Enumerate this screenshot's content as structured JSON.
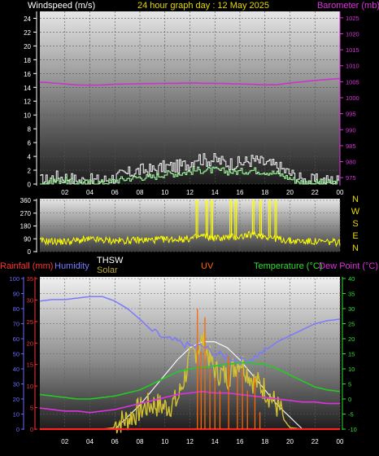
{
  "header": {
    "left": "Windspeed (m/s)",
    "center": "24 hour graph day : 12 May 2025",
    "right": "Barometer (mb)"
  },
  "legend": {
    "rainfall": "Rainfall (mm)",
    "humidity": "Humidity",
    "thsw": "THSW",
    "solar": "Solar",
    "uv": "UV",
    "temperature": "Temperature (°C)",
    "dewpoint": "Dew Point (°C)"
  },
  "colors": {
    "windspeed": "#e6e6e6",
    "windgust_avg": "#9bf59b",
    "barometer": "#cc33cc",
    "direction": "#ffff00",
    "rainfall": "#ff2222",
    "humidity": "#7a7aff",
    "thsw": "#ffffff",
    "solar": "#d4c230",
    "uv": "#ff6600",
    "temperature": "#22cc22",
    "dewpoint": "#dd33dd",
    "rain_axis": "#ff3333",
    "humidity_axis": "#6b6bff",
    "temp_axis": "#33dd33"
  },
  "chart_data": [
    {
      "type": "line",
      "title": "24 hour graph day : 12 May 2025",
      "ylabel": "Windspeed (m/s)",
      "y2label": "Barometer (mb)",
      "ylim": [
        0,
        25
      ],
      "y2lim": [
        973,
        1027
      ],
      "yticks": [
        "0",
        "2",
        "4",
        "6",
        "8",
        "10",
        "12",
        "14",
        "16",
        "18",
        "20",
        "22",
        "24"
      ],
      "y2ticks": [
        "975",
        "980",
        "985",
        "990",
        "995",
        "1000",
        "1005",
        "1010",
        "1015",
        "1020",
        "1025"
      ],
      "xticks": [
        "02",
        "04",
        "06",
        "08",
        "10",
        "12",
        "14",
        "16",
        "18",
        "20",
        "22",
        "00"
      ],
      "x_hours": [
        0.5,
        1,
        2,
        3,
        4,
        5,
        6,
        7,
        8,
        9,
        10,
        11,
        12,
        12.5,
        13,
        14,
        15,
        16,
        17,
        18,
        19,
        20,
        21,
        22,
        23,
        24
      ],
      "series": [
        {
          "name": "Windspeed",
          "values": [
            0.5,
            1.0,
            1.0,
            0.5,
            0.5,
            0.5,
            1.0,
            1.5,
            2.0,
            2.0,
            2.5,
            2.5,
            3.0,
            4.0,
            3.5,
            3.5,
            3.0,
            3.0,
            3.5,
            3.0,
            2.5,
            1.5,
            0.5,
            0.5,
            0.5,
            0.5
          ]
        },
        {
          "name": "Gust",
          "values": [
            0.2,
            0.5,
            0.5,
            0.2,
            0.2,
            0.2,
            0.5,
            0.8,
            1.0,
            1.0,
            1.5,
            1.5,
            1.8,
            2.0,
            2.0,
            2.0,
            1.8,
            1.8,
            2.0,
            1.8,
            1.5,
            0.8,
            0.2,
            0.2,
            0.2,
            0.2
          ]
        },
        {
          "name": "Barometer",
          "values": [
            1004.8,
            1004.6,
            1004.3,
            1004.0,
            1003.9,
            1004.0,
            1004.2,
            1004.3,
            1004.4,
            1004.4,
            1004.5,
            1004.5,
            1004.6,
            1004.6,
            1004.5,
            1004.5,
            1004.4,
            1004.3,
            1004.2,
            1004.0,
            1004.1,
            1004.6,
            1005.0,
            1005.4,
            1005.7,
            1006.0
          ]
        }
      ]
    },
    {
      "type": "scatter",
      "ylabel": "Wind direction",
      "ylim": [
        0,
        360
      ],
      "yticks": [
        "0",
        "90",
        "180",
        "270",
        "360"
      ],
      "compass": [
        "N",
        "W",
        "S",
        "E",
        "N"
      ],
      "xticks": [
        "02",
        "04",
        "06",
        "08",
        "10",
        "12",
        "14",
        "16",
        "18",
        "20",
        "22",
        "00"
      ],
      "x_hours": [
        0,
        2,
        4,
        6,
        8,
        10,
        12,
        13,
        14,
        15,
        16,
        17,
        18,
        19,
        20,
        22,
        24
      ],
      "values": [
        75,
        70,
        85,
        75,
        80,
        85,
        90,
        110,
        95,
        100,
        105,
        120,
        110,
        90,
        75,
        70,
        65
      ],
      "spikes_hours": [
        12.5,
        13.3,
        13.7,
        15.2,
        15.6,
        17.0,
        17.6,
        18.3,
        18.8
      ],
      "spike_value": 360
    },
    {
      "type": "line",
      "xticks": [
        "02",
        "04",
        "06",
        "08",
        "10",
        "12",
        "14",
        "16",
        "18",
        "20",
        "22",
        "00"
      ],
      "axes": {
        "humidity": {
          "label": "Humidity",
          "ylim": [
            0,
            100
          ],
          "ticks": [
            "0",
            "10",
            "20",
            "30",
            "40",
            "50",
            "60",
            "70",
            "80",
            "90",
            "100"
          ]
        },
        "rainfall": {
          "label": "Rainfall (mm)",
          "ylim": [
            0,
            35
          ],
          "ticks": [
            "0",
            "5",
            "10",
            "15",
            "20",
            "25",
            "30",
            "35"
          ]
        },
        "temperature": {
          "label": "Temperature (°C)",
          "ylim": [
            -10,
            40
          ],
          "ticks": [
            "-10",
            "-5",
            "0",
            "5",
            "10",
            "15",
            "20",
            "25",
            "30",
            "35",
            "40"
          ]
        }
      },
      "x_hours": [
        0,
        1,
        2,
        3,
        4,
        5,
        6,
        7,
        8,
        9,
        10,
        11,
        12,
        13,
        14,
        15,
        16,
        17,
        18,
        19,
        20,
        21,
        22,
        23,
        24
      ],
      "series": [
        {
          "name": "Humidity",
          "axis": "humidity",
          "values": [
            85,
            86,
            86,
            87,
            88,
            88,
            85,
            80,
            73,
            65,
            60,
            58,
            55,
            55,
            50,
            48,
            45,
            47,
            52,
            58,
            62,
            66,
            70,
            72,
            73
          ]
        },
        {
          "name": "Temperature",
          "axis": "temperature",
          "values": [
            1.5,
            1.0,
            0.5,
            0.0,
            0.0,
            0.5,
            1.0,
            2.0,
            3.0,
            5.0,
            7.0,
            9.0,
            10.0,
            10.5,
            11.0,
            11.5,
            12.0,
            12.0,
            11.5,
            10.0,
            8.0,
            6.0,
            4.0,
            3.0,
            2.5
          ]
        },
        {
          "name": "Dew Point",
          "axis": "temperature",
          "values": [
            -3.0,
            -3.5,
            -4.0,
            -4.0,
            -4.5,
            -4.0,
            -3.5,
            -2.5,
            -1.5,
            -0.5,
            0.5,
            1.5,
            2.0,
            2.5,
            2.0,
            2.0,
            1.5,
            1.0,
            0.5,
            0.0,
            -0.5,
            -1.0,
            -1.0,
            -1.5,
            -1.5
          ]
        },
        {
          "name": "THSW",
          "axis": "temperature",
          "values": [
            -10,
            -10,
            -10,
            -10,
            -10,
            -10,
            -10,
            -6,
            -2,
            3,
            8,
            13,
            17,
            19,
            19,
            17,
            13,
            8,
            3,
            -2,
            -6,
            -10,
            -10,
            -10,
            -10
          ]
        },
        {
          "name": "Solar",
          "axis": "temperature",
          "values": [
            -10,
            -10,
            -10,
            -10,
            -10,
            -10,
            -9.5,
            -8,
            -5,
            -3,
            -4,
            -2,
            12,
            18,
            8,
            6,
            12,
            5,
            2,
            -4,
            -9.5,
            -10,
            -10,
            -10,
            -10
          ]
        },
        {
          "name": "Rainfall",
          "axis": "rainfall",
          "values": [
            0,
            0,
            0,
            0,
            0,
            0,
            0,
            0,
            0,
            0,
            0,
            0,
            0,
            0,
            0,
            0,
            0,
            0,
            0,
            0,
            0,
            0,
            0,
            0,
            0
          ]
        }
      ],
      "uv_bars": {
        "axis": "rainfall",
        "x_hours": [
          12.6,
          12.9,
          13.2,
          13.6,
          14.0,
          14.4,
          15.1,
          15.8,
          16.2,
          16.6,
          17.2,
          17.6
        ],
        "values": [
          28,
          18,
          26,
          14,
          12,
          9,
          17,
          13,
          14,
          9,
          12,
          4
        ]
      }
    }
  ]
}
